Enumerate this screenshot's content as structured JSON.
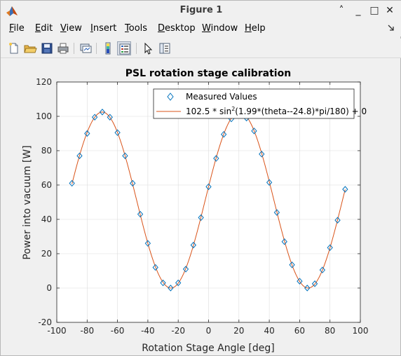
{
  "window": {
    "title": "Figure 1",
    "controls": {
      "collapse": "˄",
      "minimize": "_",
      "maximize": "□",
      "close": "✕"
    }
  },
  "menu": {
    "items": [
      {
        "pre": "",
        "u": "F",
        "post": "ile"
      },
      {
        "pre": "",
        "u": "E",
        "post": "dit"
      },
      {
        "pre": "",
        "u": "V",
        "post": "iew"
      },
      {
        "pre": "",
        "u": "I",
        "post": "nsert"
      },
      {
        "pre": "",
        "u": "T",
        "post": "ools"
      },
      {
        "pre": "",
        "u": "D",
        "post": "esktop"
      },
      {
        "pre": "",
        "u": "W",
        "post": "indow"
      },
      {
        "pre": "",
        "u": "H",
        "post": "elp"
      }
    ],
    "overflow_icon": "dock-arrow-icon"
  },
  "toolbar": {
    "icons": [
      "new-figure-icon",
      "open-file-icon",
      "save-icon",
      "print-icon",
      "link-plot-icon",
      "colorbar-icon",
      "legend-icon",
      "edit-plot-icon",
      "property-inspector-icon"
    ]
  },
  "colors": {
    "fit_line": "#d95319",
    "marker": "#0072bd",
    "axes_bg": "#ffffff",
    "grid": "#dcdcdc"
  },
  "chart_data": {
    "type": "scatter",
    "title": "PSL rotation stage calibration",
    "xlabel": "Rotation Stage Angle [deg]",
    "ylabel": "Power into vacuum [W]",
    "xlim": [
      -100,
      100
    ],
    "ylim": [
      -20,
      120
    ],
    "xticks": [
      -100,
      -80,
      -60,
      -40,
      -20,
      0,
      20,
      40,
      60,
      80,
      100
    ],
    "yticks": [
      -20,
      0,
      20,
      40,
      60,
      80,
      100,
      120
    ],
    "grid": true,
    "legend_position": "top-right",
    "series": [
      {
        "name": "Measured Values",
        "kind": "markers",
        "marker": "diamond",
        "x": [
          -90,
          -85,
          -80,
          -75,
          -70,
          -65,
          -60,
          -55,
          -50,
          -45,
          -40,
          -35,
          -30,
          -25,
          -20,
          -15,
          -10,
          -5,
          0,
          5,
          10,
          15,
          20,
          25,
          30,
          35,
          40,
          45,
          50,
          55,
          60,
          65,
          70,
          75,
          80,
          85,
          90
        ],
        "y": [
          61,
          77,
          90,
          99.5,
          102.5,
          99.5,
          90.5,
          77,
          61,
          43,
          26,
          12,
          3,
          0,
          3,
          11,
          25,
          41,
          59,
          75.5,
          89.5,
          98.5,
          102.5,
          99,
          91.5,
          78,
          61.5,
          44,
          27,
          13.5,
          4,
          0,
          2.5,
          10.5,
          23.5,
          39.5,
          57.5
        ]
      },
      {
        "name_prefix": "102.5 * sin",
        "name_sup": "2",
        "name_suffix": "(1.99*(theta--24.8)*pi/180) + 0",
        "kind": "line",
        "amplitude": 102.5,
        "frequency": 1.99,
        "phase_offset_deg": -24.8,
        "offset": 0,
        "x_range": [
          -90,
          90
        ]
      }
    ]
  }
}
